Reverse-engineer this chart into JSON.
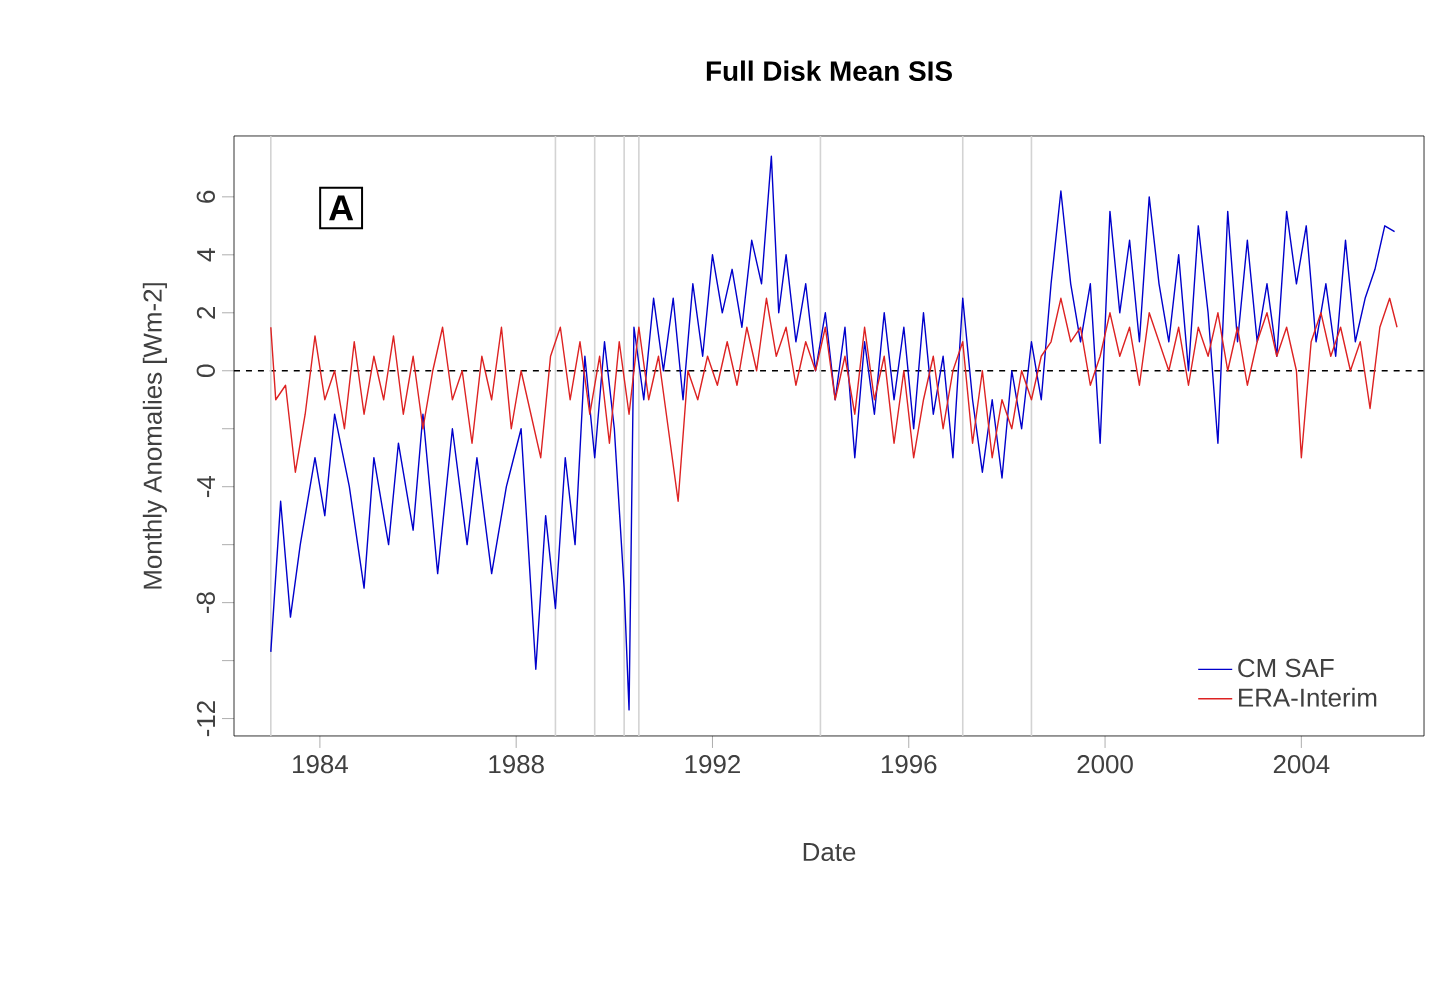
{
  "chart_data": {
    "type": "line",
    "title": "Full Disk Mean SIS",
    "xlabel": "Date",
    "ylabel": "Monthly Anomalies [Wm-2]",
    "xlim": [
      1982.25,
      2006.5
    ],
    "xticks": [
      1984,
      1988,
      1992,
      1996,
      2000,
      2004
    ],
    "ylim": [
      -12.6,
      8.1
    ],
    "yticks": [
      -12,
      {
        "value": -10,
        "label": null
      },
      -8,
      {
        "value": -6,
        "label": null
      },
      -4,
      {
        "value": -2,
        "label": null
      },
      0,
      2,
      4,
      6
    ],
    "legend": "bottom right",
    "line_style": "solid",
    "grid": false,
    "annotations": [
      "A"
    ],
    "ref_lines": [
      {
        "axis": "y",
        "value": 0,
        "color": "#000000",
        "line_style": "dashed"
      },
      {
        "axis": "x",
        "value": 1983.0,
        "color": "#d3d3d3"
      },
      {
        "axis": "x",
        "value": 1988.8,
        "color": "#d3d3d3"
      },
      {
        "axis": "x",
        "value": 1989.6,
        "color": "#d3d3d3"
      },
      {
        "axis": "x",
        "value": 1990.2,
        "color": "#d3d3d3"
      },
      {
        "axis": "x",
        "value": 1990.5,
        "color": "#d3d3d3"
      },
      {
        "axis": "x",
        "value": 1994.2,
        "color": "#d3d3d3"
      },
      {
        "axis": "x",
        "value": 1997.1,
        "color": "#d3d3d3"
      },
      {
        "axis": "x",
        "value": 1998.5,
        "color": "#d3d3d3"
      }
    ],
    "series": [
      {
        "name": "CM SAF",
        "color": "#0000cc",
        "x": [
          1983.0,
          1983.2,
          1983.4,
          1983.6,
          1983.9,
          1984.1,
          1984.3,
          1984.6,
          1984.9,
          1985.1,
          1985.4,
          1985.6,
          1985.9,
          1986.1,
          1986.4,
          1986.7,
          1987.0,
          1987.2,
          1987.5,
          1987.8,
          1988.1,
          1988.4,
          1988.6,
          1988.8,
          1989.0,
          1989.2,
          1989.4,
          1989.6,
          1989.8,
          1990.0,
          1990.2,
          1990.3,
          1990.4,
          1990.6,
          1990.8,
          1991.0,
          1991.2,
          1991.4,
          1991.6,
          1991.8,
          1992.0,
          1992.2,
          1992.4,
          1992.6,
          1992.8,
          1993.0,
          1993.2,
          1993.35,
          1993.5,
          1993.7,
          1993.9,
          1994.1,
          1994.3,
          1994.5,
          1994.7,
          1994.9,
          1995.1,
          1995.3,
          1995.5,
          1995.7,
          1995.9,
          1996.1,
          1996.3,
          1996.5,
          1996.7,
          1996.9,
          1997.1,
          1997.3,
          1997.5,
          1997.7,
          1997.9,
          1998.1,
          1998.3,
          1998.5,
          1998.7,
          1998.9,
          1999.1,
          1999.3,
          1999.5,
          1999.7,
          1999.9,
          2000.1,
          2000.3,
          2000.5,
          2000.7,
          2000.9,
          2001.1,
          2001.3,
          2001.5,
          2001.7,
          2001.9,
          2002.1,
          2002.3,
          2002.5,
          2002.7,
          2002.9,
          2003.1,
          2003.3,
          2003.5,
          2003.7,
          2003.9,
          2004.1,
          2004.3,
          2004.5,
          2004.7,
          2004.9,
          2005.1,
          2005.3,
          2005.5,
          2005.7,
          2005.9
        ],
        "values": [
          -9.7,
          -4.5,
          -8.5,
          -6,
          -3,
          -5,
          -1.5,
          -4,
          -7.5,
          -3,
          -6,
          -2.5,
          -5.5,
          -1.5,
          -7,
          -2,
          -6,
          -3,
          -7,
          -4,
          -2,
          -10.3,
          -5,
          -8.2,
          -3,
          -6,
          0.5,
          -3,
          1,
          -2,
          -7.5,
          -11.7,
          1.5,
          -1,
          2.5,
          0,
          2.5,
          -1,
          3,
          0.5,
          4,
          2,
          3.5,
          1.5,
          4.5,
          3,
          7.4,
          2,
          4,
          1,
          3,
          0,
          2,
          -1,
          1.5,
          -3,
          1,
          -1.5,
          2,
          -1,
          1.5,
          -2,
          2,
          -1.5,
          0.5,
          -3,
          2.5,
          -1,
          -3.5,
          -1,
          -3.7,
          0,
          -2,
          1,
          -1,
          3,
          6.2,
          3,
          1,
          3,
          -2.5,
          5.5,
          2,
          4.5,
          1,
          6,
          3,
          1,
          4,
          0,
          5,
          2,
          -2.5,
          5.5,
          1,
          4.5,
          1,
          3,
          0.5,
          5.5,
          3,
          5,
          1,
          3,
          0.5,
          4.5,
          1,
          2.5,
          3.5,
          5,
          4.8
        ]
      },
      {
        "name": "ERA-Interim",
        "color": "#dd2222",
        "x": [
          1983.0,
          1983.1,
          1983.3,
          1983.5,
          1983.7,
          1983.9,
          1984.1,
          1984.3,
          1984.5,
          1984.7,
          1984.9,
          1985.1,
          1985.3,
          1985.5,
          1985.7,
          1985.9,
          1986.1,
          1986.3,
          1986.5,
          1986.7,
          1986.9,
          1987.1,
          1987.3,
          1987.5,
          1987.7,
          1987.9,
          1988.1,
          1988.3,
          1988.5,
          1988.7,
          1988.9,
          1989.1,
          1989.3,
          1989.5,
          1989.7,
          1989.9,
          1990.1,
          1990.3,
          1990.5,
          1990.7,
          1990.9,
          1991.1,
          1991.3,
          1991.5,
          1991.7,
          1991.9,
          1992.1,
          1992.3,
          1992.5,
          1992.7,
          1992.9,
          1993.1,
          1993.3,
          1993.5,
          1993.7,
          1993.9,
          1994.1,
          1994.3,
          1994.5,
          1994.7,
          1994.9,
          1995.1,
          1995.3,
          1995.5,
          1995.7,
          1995.9,
          1996.1,
          1996.3,
          1996.5,
          1996.7,
          1996.9,
          1997.1,
          1997.3,
          1997.5,
          1997.7,
          1997.9,
          1998.1,
          1998.3,
          1998.5,
          1998.7,
          1998.9,
          1999.1,
          1999.3,
          1999.5,
          1999.7,
          1999.9,
          2000.1,
          2000.3,
          2000.5,
          2000.7,
          2000.9,
          2001.1,
          2001.3,
          2001.5,
          2001.7,
          2001.9,
          2002.1,
          2002.3,
          2002.5,
          2002.7,
          2002.9,
          2003.1,
          2003.3,
          2003.5,
          2003.7,
          2003.9,
          2004.0,
          2004.2,
          2004.4,
          2004.6,
          2004.8,
          2005.0,
          2005.2,
          2005.4,
          2005.6,
          2005.8,
          2005.95
        ],
        "values": [
          1.5,
          -1,
          -0.5,
          -3.5,
          -1.5,
          1.2,
          -1,
          0,
          -2,
          1,
          -1.5,
          0.5,
          -1,
          1.2,
          -1.5,
          0.5,
          -2,
          0,
          1.5,
          -1,
          0,
          -2.5,
          0.5,
          -1,
          1.5,
          -2,
          0,
          -1.5,
          -3,
          0.5,
          1.5,
          -1,
          1,
          -1.5,
          0.5,
          -2.5,
          1,
          -1.5,
          1.5,
          -1,
          0.5,
          -2,
          -4.5,
          0,
          -1,
          0.5,
          -0.5,
          1,
          -0.5,
          1.5,
          0,
          2.5,
          0.5,
          1.5,
          -0.5,
          1,
          0,
          1.5,
          -1,
          0.5,
          -1.5,
          1.5,
          -1,
          0.5,
          -2.5,
          0,
          -3,
          -1,
          0.5,
          -2,
          0,
          1,
          -2.5,
          0,
          -3,
          -1,
          -2,
          0,
          -1,
          0.5,
          1,
          2.5,
          1,
          1.5,
          -0.5,
          0.5,
          2,
          0.5,
          1.5,
          -0.5,
          2,
          1,
          0,
          1.5,
          -0.5,
          1.5,
          0.5,
          2,
          0,
          1.5,
          -0.5,
          1,
          2,
          0.5,
          1.5,
          0,
          -3,
          1,
          2,
          0.5,
          1.5,
          0,
          1,
          -1.3,
          1.5,
          2.5,
          1.5
        ]
      }
    ]
  }
}
